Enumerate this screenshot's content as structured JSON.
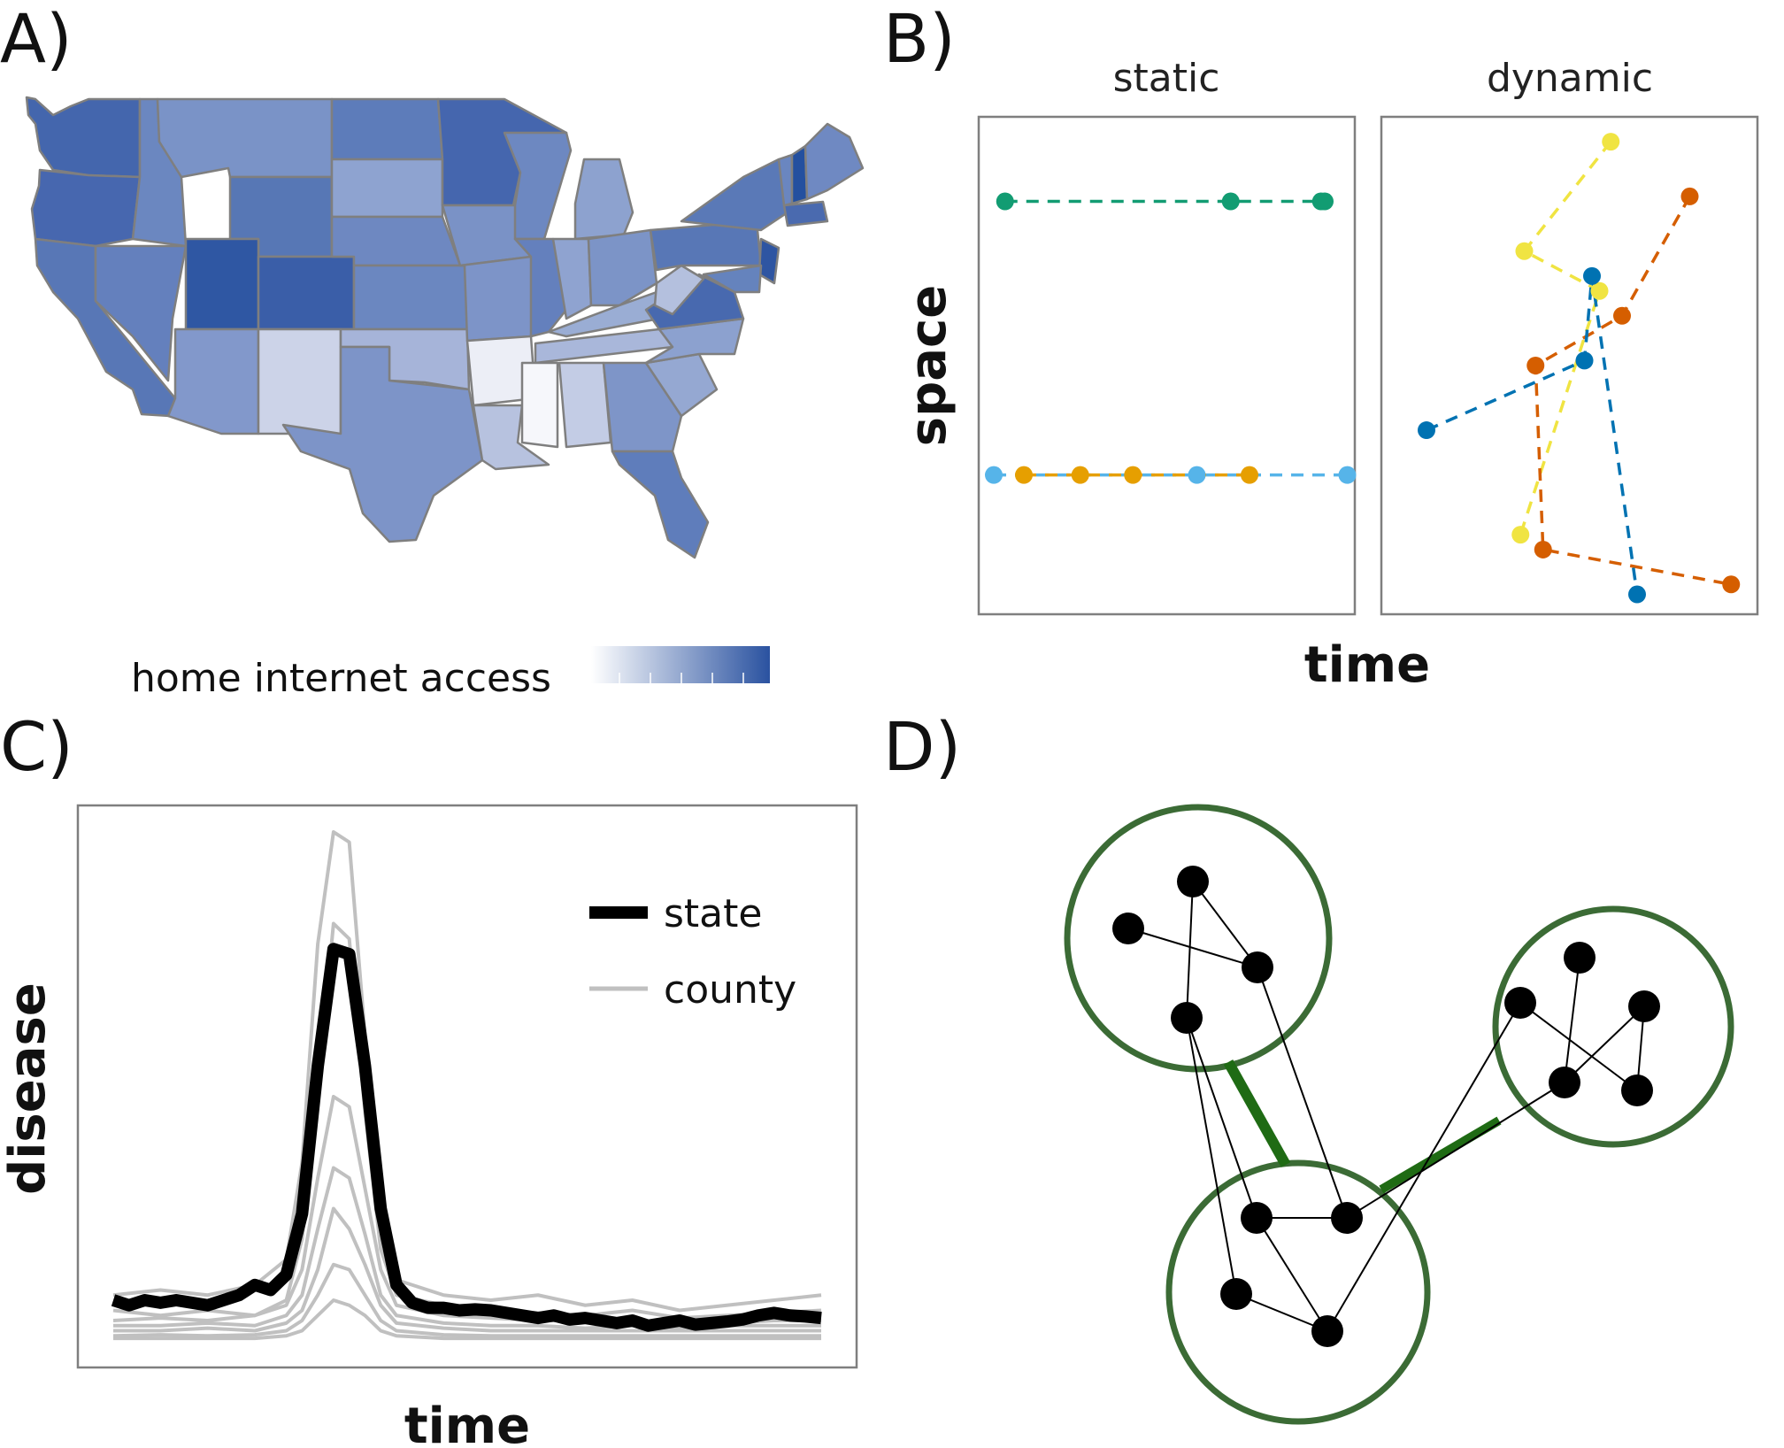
{
  "panels": {
    "a": {
      "letter": "A)",
      "legend_title": "home internet access",
      "colors": {
        "low": "#ffffff",
        "high": "#2a52a0",
        "border": "#7f7f7f"
      }
    },
    "b": {
      "letter": "B)",
      "facets": [
        "static",
        "dynamic"
      ],
      "xlabel": "time",
      "ylabel": "space"
    },
    "c": {
      "letter": "C)",
      "xlabel": "time",
      "ylabel": "disease",
      "legend": [
        {
          "label": "state",
          "color": "#000000"
        },
        {
          "label": "county",
          "color": "#c0c0c0"
        }
      ]
    },
    "d": {
      "letter": "D)",
      "colors": {
        "cluster": "#3b6b35",
        "bridge": "#1f6b14",
        "node": "#000000"
      }
    }
  },
  "chart_data": [
    {
      "type": "scatter",
      "facet": "static",
      "xlim": [
        0,
        10
      ],
      "ylim": [
        0,
        10
      ],
      "series": [
        {
          "color": "#129c72",
          "x": [
            0.7,
            6.7,
            9.1,
            9.2
          ],
          "y": [
            8.3,
            8.3,
            8.3,
            8.3
          ]
        },
        {
          "color": "#56b4e9",
          "x": [
            0.4,
            5.8,
            9.8
          ],
          "y": [
            2.8,
            2.8,
            2.8
          ]
        },
        {
          "color": "#e69f00",
          "x": [
            1.2,
            2.7,
            4.1,
            7.2
          ],
          "y": [
            2.8,
            2.8,
            2.8,
            2.8
          ]
        }
      ]
    },
    {
      "type": "scatter",
      "facet": "dynamic",
      "xlim": [
        0,
        10
      ],
      "ylim": [
        0,
        10
      ],
      "series": [
        {
          "color": "#f0e442",
          "x": [
            6.1,
            3.8,
            5.8,
            3.7
          ],
          "y": [
            9.5,
            7.3,
            6.5,
            1.6
          ]
        },
        {
          "color": "#d55e00",
          "x": [
            8.2,
            6.4,
            4.1,
            4.3,
            9.3
          ],
          "y": [
            8.4,
            6.0,
            5.0,
            1.3,
            0.6
          ]
        },
        {
          "color": "#0072b2",
          "x": [
            1.2,
            5.4,
            5.6,
            6.8
          ],
          "y": [
            3.7,
            5.1,
            6.8,
            0.4
          ]
        }
      ]
    },
    {
      "type": "line",
      "xlim": [
        0,
        45
      ],
      "ylim": [
        0,
        10
      ],
      "series": [
        {
          "name": "state",
          "color": "#000000",
          "x": [
            0,
            1,
            2,
            3,
            4,
            5,
            6,
            7,
            8,
            9,
            10,
            11,
            12,
            13,
            14,
            15,
            16,
            17,
            18,
            19,
            20,
            21,
            22,
            23,
            24,
            25,
            26,
            27,
            28,
            29,
            30,
            31,
            32,
            33,
            34,
            35,
            36,
            37,
            38,
            39,
            40,
            41,
            42,
            43,
            44,
            45
          ],
          "y": [
            0.8,
            0.7,
            0.8,
            0.75,
            0.8,
            0.75,
            0.7,
            0.8,
            0.9,
            1.1,
            1.0,
            1.3,
            2.5,
            5.4,
            7.7,
            7.6,
            5.4,
            2.6,
            1.1,
            0.75,
            0.65,
            0.65,
            0.6,
            0.62,
            0.6,
            0.55,
            0.5,
            0.45,
            0.5,
            0.42,
            0.45,
            0.4,
            0.35,
            0.4,
            0.3,
            0.35,
            0.4,
            0.32,
            0.35,
            0.38,
            0.42,
            0.5,
            0.55,
            0.5,
            0.48,
            0.45
          ]
        },
        {
          "color": "#c0c0c0",
          "x": [
            0,
            3,
            6,
            9,
            11,
            12,
            13,
            14,
            15,
            16,
            17,
            18,
            21,
            24,
            27,
            30,
            33,
            36,
            39,
            42,
            45
          ],
          "y": [
            0.9,
            1.0,
            0.9,
            1.1,
            1.6,
            3.5,
            7.8,
            10.0,
            9.8,
            6.0,
            2.5,
            1.2,
            0.9,
            0.8,
            0.9,
            0.7,
            0.8,
            0.6,
            0.7,
            0.8,
            0.9
          ]
        },
        {
          "color": "#c0c0c0",
          "x": [
            0,
            3,
            6,
            9,
            11,
            12,
            13,
            14,
            15,
            16,
            17,
            18,
            21,
            24,
            27,
            30,
            33,
            36,
            39,
            42,
            45
          ],
          "y": [
            0.6,
            0.5,
            0.6,
            0.5,
            0.8,
            2.0,
            5.0,
            8.2,
            7.9,
            4.5,
            1.8,
            0.9,
            0.7,
            0.6,
            0.55,
            0.5,
            0.6,
            0.45,
            0.5,
            0.55,
            0.6
          ]
        },
        {
          "color": "#c0c0c0",
          "x": [
            0,
            3,
            6,
            9,
            11,
            12,
            13,
            14,
            15,
            16,
            17,
            18,
            21,
            24,
            27,
            30,
            33,
            36,
            39,
            42,
            45
          ],
          "y": [
            0.4,
            0.45,
            0.4,
            0.5,
            0.7,
            1.4,
            3.2,
            4.8,
            4.6,
            3.0,
            1.4,
            0.7,
            0.5,
            0.45,
            0.4,
            0.4,
            0.35,
            0.4,
            0.35,
            0.4,
            0.4
          ]
        },
        {
          "color": "#c0c0c0",
          "x": [
            0,
            3,
            6,
            9,
            11,
            12,
            13,
            14,
            15,
            16,
            17,
            18,
            21,
            24,
            27,
            30,
            33,
            36,
            39,
            42,
            45
          ],
          "y": [
            0.3,
            0.3,
            0.35,
            0.3,
            0.5,
            0.9,
            2.2,
            3.4,
            3.2,
            2.1,
            0.9,
            0.5,
            0.35,
            0.3,
            0.3,
            0.25,
            0.3,
            0.25,
            0.3,
            0.3,
            0.3
          ]
        },
        {
          "color": "#c0c0c0",
          "x": [
            0,
            3,
            6,
            9,
            11,
            12,
            13,
            14,
            15,
            16,
            17,
            18,
            21,
            24,
            27,
            30,
            33,
            36,
            39,
            42,
            45
          ],
          "y": [
            0.2,
            0.2,
            0.25,
            0.2,
            0.35,
            0.6,
            1.4,
            2.6,
            2.2,
            1.5,
            0.7,
            0.35,
            0.25,
            0.2,
            0.2,
            0.2,
            0.2,
            0.2,
            0.2,
            0.2,
            0.2
          ]
        },
        {
          "color": "#c0c0c0",
          "x": [
            0,
            3,
            6,
            9,
            11,
            12,
            13,
            14,
            15,
            16,
            17,
            18,
            21,
            24,
            27,
            30,
            33,
            36,
            39,
            42,
            45
          ],
          "y": [
            0.1,
            0.12,
            0.1,
            0.12,
            0.2,
            0.4,
            0.9,
            1.5,
            1.4,
            0.9,
            0.4,
            0.2,
            0.12,
            0.1,
            0.1,
            0.1,
            0.1,
            0.1,
            0.1,
            0.1,
            0.1
          ]
        },
        {
          "color": "#c0c0c0",
          "x": [
            0,
            3,
            6,
            9,
            11,
            12,
            13,
            14,
            15,
            16,
            17,
            18,
            21,
            24,
            27,
            30,
            33,
            36,
            39,
            42,
            45
          ],
          "y": [
            0.05,
            0.05,
            0.05,
            0.05,
            0.1,
            0.2,
            0.5,
            0.8,
            0.7,
            0.5,
            0.2,
            0.1,
            0.05,
            0.05,
            0.05,
            0.05,
            0.05,
            0.05,
            0.05,
            0.05,
            0.05
          ]
        }
      ]
    }
  ]
}
